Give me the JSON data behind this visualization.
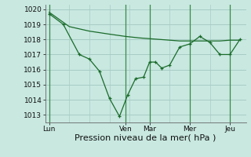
{
  "title": "",
  "xlabel": "Pression niveau de la mer( hPa )",
  "ylabel": "",
  "bg_color": "#c8e8e0",
  "grid_color": "#a8ccc4",
  "line_color": "#1a6b2a",
  "ylim": [
    1012.5,
    1020.3
  ],
  "yticks": [
    1013,
    1014,
    1015,
    1016,
    1017,
    1018,
    1019,
    1020
  ],
  "xtick_labels": [
    "Lun",
    "Ven",
    "Mar",
    "Mer",
    "Jeu"
  ],
  "xtick_positions": [
    0.0,
    3.8,
    5.0,
    7.0,
    9.0
  ],
  "xlim": [
    -0.2,
    9.8
  ],
  "line1_x": [
    0,
    0.7,
    1.5,
    2.0,
    2.5,
    3.0,
    3.5,
    3.9,
    4.3,
    4.7,
    5.0,
    5.3,
    5.6,
    6.0,
    6.5,
    7.0,
    7.5,
    8.0,
    8.5,
    9.0,
    9.5
  ],
  "line1_y": [
    1019.7,
    1019.0,
    1017.0,
    1016.7,
    1015.9,
    1014.1,
    1012.9,
    1014.3,
    1015.4,
    1015.5,
    1016.5,
    1016.5,
    1016.1,
    1016.3,
    1017.5,
    1017.7,
    1018.2,
    1017.8,
    1017.0,
    1017.0,
    1018.0
  ],
  "line2_x": [
    0,
    1,
    2,
    3,
    3.8,
    4.5,
    5.0,
    5.5,
    6.0,
    6.5,
    7.0,
    7.5,
    8.0,
    8.5,
    9.0,
    9.5
  ],
  "line2_y": [
    1019.8,
    1018.85,
    1018.55,
    1018.35,
    1018.2,
    1018.1,
    1018.05,
    1018.0,
    1017.95,
    1017.9,
    1017.9,
    1017.9,
    1017.9,
    1017.9,
    1017.95,
    1017.95
  ],
  "vline_day_x": [
    0,
    3.8,
    5.0,
    7.0,
    9.0
  ],
  "font_size_label": 8,
  "font_size_tick": 6.5
}
